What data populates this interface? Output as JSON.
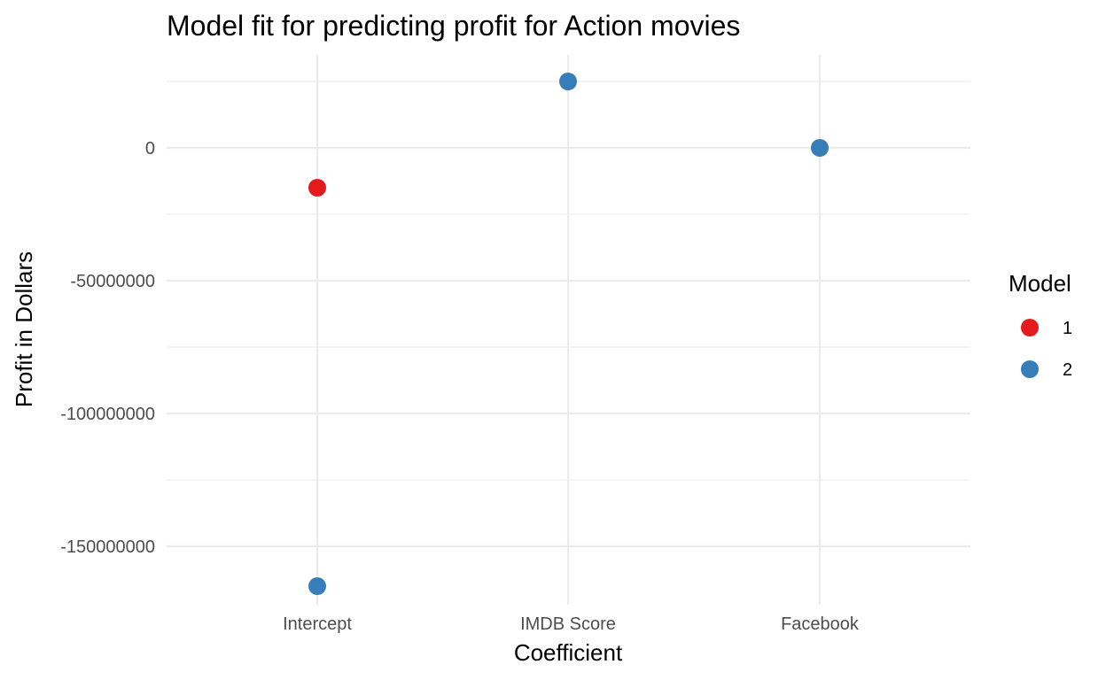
{
  "chart_data": {
    "type": "scatter",
    "title": "Model fit for predicting profit for Action movies",
    "xlabel": "Coefficient",
    "ylabel": "Profit in Dollars",
    "categories": [
      "Intercept",
      "IMDB Score",
      "Facebook"
    ],
    "ylim": [
      -172000000,
      35000000
    ],
    "y_ticks": [
      0,
      -50000000,
      -100000000,
      -150000000
    ],
    "y_tick_labels": [
      "0",
      "-50000000",
      "-100000000",
      "-150000000"
    ],
    "grid": true,
    "legend": {
      "title": "Model",
      "placement": "right",
      "entries": [
        {
          "label": "1",
          "color": "#E41A1C"
        },
        {
          "label": "2",
          "color": "#377EB8"
        }
      ]
    },
    "series": [
      {
        "name": "1",
        "color": "#E41A1C",
        "points": [
          {
            "x": "Intercept",
            "y": -15000000
          }
        ]
      },
      {
        "name": "2",
        "color": "#377EB8",
        "points": [
          {
            "x": "Intercept",
            "y": -165000000
          },
          {
            "x": "IMDB Score",
            "y": 25000000
          },
          {
            "x": "Facebook",
            "y": 0
          }
        ]
      }
    ]
  }
}
